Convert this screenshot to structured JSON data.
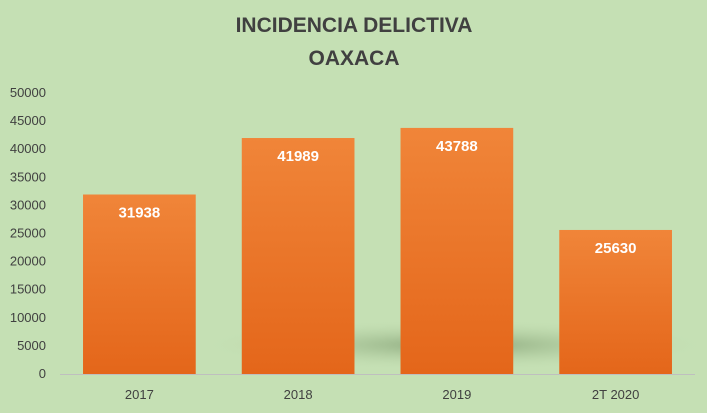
{
  "chart_data": {
    "type": "bar",
    "title": [
      "INCIDENCIA DELICTIVA",
      "OAXACA"
    ],
    "categories": [
      "2017",
      "2018",
      "2019",
      "2T 2020"
    ],
    "values": [
      31938,
      41989,
      43788,
      25630
    ],
    "data_labels": [
      "31938",
      "41989",
      "43788",
      "25630"
    ],
    "y_ticks": [
      "0",
      "5000",
      "10000",
      "15000",
      "20000",
      "25000",
      "30000",
      "35000",
      "40000",
      "45000",
      "50000"
    ],
    "ylim": [
      0,
      50000
    ],
    "grid": false,
    "legend": "none",
    "bar_color": "#ed7d31",
    "background_color": "#c5e0b4",
    "text_color": "#404040"
  }
}
